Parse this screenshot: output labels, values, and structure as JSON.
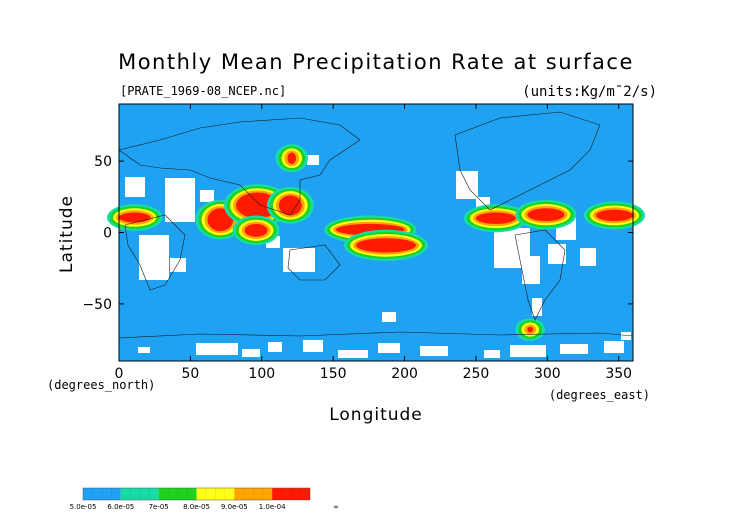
{
  "chart_data": {
    "type": "heatmap",
    "title": "Monthly Mean Precipitation Rate at surface",
    "source_label": "[PRATE_1969-08_NCEP.nc]",
    "units": "(units:Kg/m¯2/s)",
    "xlabel": "Longitude",
    "ylabel": "Latitude",
    "x_unit_label": "(degrees_east)",
    "y_unit_label": "(degrees_north)",
    "xlim": [
      0,
      360
    ],
    "ylim": [
      -90,
      90
    ],
    "x_ticks": [
      0,
      50,
      100,
      150,
      200,
      250,
      300,
      350
    ],
    "y_ticks": [
      50,
      0,
      -50
    ],
    "x_tick_labels": [
      "0",
      "50",
      "100",
      "150",
      "200",
      "250",
      "300",
      "350"
    ],
    "y_tick_labels": [
      "50",
      "0",
      "−50"
    ],
    "legend": {
      "labels": [
        "5.0e-05",
        "6.0e-05",
        "7e-05",
        "8.0e-05",
        "9.0e-05",
        "1.0e-04",
        "∞"
      ],
      "colors": [
        "#1fa2f2",
        "#16dca8",
        "#1ed21e",
        "#ffff1a",
        "#ffa500",
        "#ff1a00"
      ]
    },
    "background_color": "#1fa2f2",
    "missing_color": "#ffffff",
    "regions": [
      {
        "level": 6,
        "lon": [
          62,
          80
        ],
        "lat": [
          1,
          17
        ]
      },
      {
        "level": 6,
        "lon": [
          82,
          112
        ],
        "lat": [
          10,
          28
        ]
      },
      {
        "level": 6,
        "lon": [
          88,
          104
        ],
        "lat": [
          -3,
          6
        ]
      },
      {
        "level": 6,
        "lon": [
          112,
          128
        ],
        "lat": [
          12,
          26
        ]
      },
      {
        "level": 6,
        "lon": [
          152,
          200
        ],
        "lat": [
          -2,
          6
        ]
      },
      {
        "level": 6,
        "lon": [
          166,
          208
        ],
        "lat": [
          -14,
          -4
        ]
      },
      {
        "level": 6,
        "lon": [
          250,
          278
        ],
        "lat": [
          6,
          14
        ]
      },
      {
        "level": 6,
        "lon": [
          286,
          312
        ],
        "lat": [
          8,
          17
        ]
      },
      {
        "level": 6,
        "lon": [
          334,
          360
        ],
        "lat": [
          8,
          16
        ]
      },
      {
        "level": 6,
        "lon": [
          0,
          22
        ],
        "lat": [
          7,
          14
        ]
      },
      {
        "level": 6,
        "lon": [
          118,
          124
        ],
        "lat": [
          48,
          56
        ]
      },
      {
        "level": 6,
        "lon": [
          286,
          290
        ],
        "lat": [
          -70,
          -66
        ]
      }
    ],
    "grid": false
  }
}
